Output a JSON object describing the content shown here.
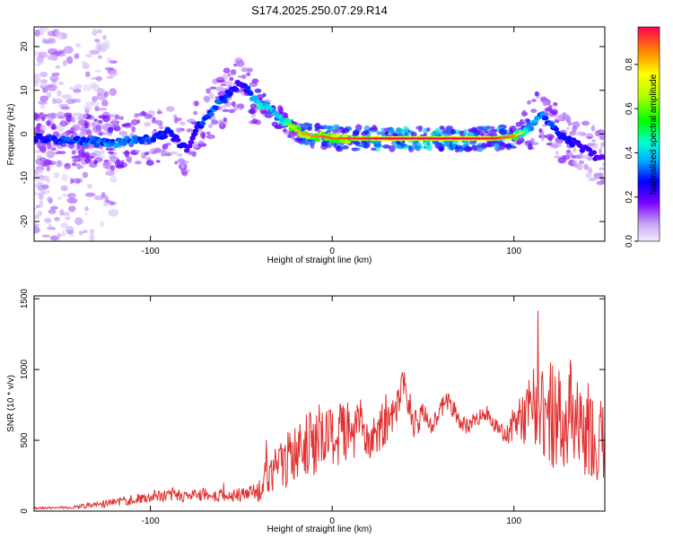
{
  "title": "S174.2025.250.07.29.R14",
  "colors": {
    "signal": "#e03030",
    "axis": "#000000",
    "background": "#ffffff"
  },
  "chart_data": [
    {
      "type": "heatmap",
      "title": "S174.2025.250.07.29.R14",
      "xlabel": "Height of straight line (km)",
      "ylabel": "Frequency (Hz)",
      "xlim": [
        -164,
        150
      ],
      "ylim": [
        -24.5,
        24.5
      ],
      "x_ticks": [
        -100,
        0,
        100
      ],
      "x_tick_labels": [
        "-100",
        "0",
        "100"
      ],
      "y_ticks": [
        -20,
        -10,
        0,
        10,
        20
      ],
      "y_tick_labels": [
        "-20",
        "-10",
        "0",
        "10",
        "20"
      ],
      "colorbar": {
        "label": "Normalized spectral amplitude",
        "range": [
          0,
          0.97
        ],
        "ticks": [
          0.0,
          0.2,
          0.4,
          0.6,
          0.8
        ],
        "tick_labels": [
          "0.0",
          "0.2",
          "0.4",
          "0.6",
          "0.8"
        ]
      },
      "ridge": {
        "x": [
          -164,
          -140,
          -120,
          -100,
          -90,
          -80,
          -75,
          -70,
          -65,
          -60,
          -55,
          -50,
          -45,
          -42,
          -40,
          -35,
          -30,
          -25,
          -20,
          -15,
          -10,
          -5,
          0,
          10,
          20,
          30,
          40,
          50,
          60,
          70,
          80,
          90,
          100,
          105,
          110,
          115,
          120,
          125,
          130,
          135,
          140,
          145,
          150
        ],
        "freq": [
          -1,
          -1.5,
          -2,
          -1,
          0.5,
          -3.5,
          1,
          3.5,
          6,
          8,
          10,
          12,
          9,
          7.5,
          7,
          6,
          4,
          2.5,
          1,
          0,
          -0.5,
          -0.5,
          -1,
          -1,
          -1,
          -1,
          -1,
          -1,
          -1,
          -1,
          -1,
          -1,
          -0.5,
          0.5,
          2,
          5,
          2,
          0,
          -1.5,
          -2.5,
          -3.5,
          -5,
          -5.5
        ],
        "amplitude": [
          0.35,
          0.4,
          0.45,
          0.4,
          0.38,
          0.3,
          0.35,
          0.4,
          0.42,
          0.4,
          0.35,
          0.3,
          0.45,
          0.5,
          0.55,
          0.5,
          0.5,
          0.6,
          0.75,
          0.8,
          0.8,
          0.85,
          0.85,
          0.88,
          0.9,
          0.95,
          0.97,
          0.97,
          0.95,
          0.95,
          0.92,
          0.9,
          0.8,
          0.6,
          0.5,
          0.45,
          0.4,
          0.35,
          0.35,
          0.3,
          0.3,
          0.28,
          0.25
        ]
      }
    },
    {
      "type": "line",
      "xlabel": "Height of straight line (km)",
      "ylabel": "SNR (10 * v/v)",
      "xlim": [
        -164,
        150
      ],
      "ylim": [
        0,
        1520
      ],
      "x_ticks": [
        -100,
        0,
        100
      ],
      "x_tick_labels": [
        "-100",
        "0",
        "100"
      ],
      "y_ticks": [
        0,
        500,
        1000,
        1500
      ],
      "y_tick_labels": [
        "0",
        "500",
        "1000",
        "1500"
      ],
      "series": [
        {
          "name": "SNR",
          "envelope": {
            "x": [
              -164,
              -150,
              -140,
              -130,
              -120,
              -110,
              -100,
              -95,
              -90,
              -80,
              -70,
              -60,
              -50,
              -45,
              -40,
              -35,
              -30,
              -25,
              -20,
              -15,
              -10,
              -5,
              0,
              5,
              10,
              15,
              20,
              25,
              30,
              35,
              38,
              40,
              45,
              50,
              55,
              60,
              62,
              65,
              70,
              75,
              80,
              85,
              90,
              95,
              100,
              105,
              110,
              115,
              120,
              125,
              130,
              135,
              140,
              145,
              150
            ],
            "mean": [
              20,
              25,
              30,
              45,
              60,
              80,
              100,
              110,
              110,
              110,
              120,
              110,
              110,
              130,
              140,
              280,
              320,
              350,
              420,
              460,
              480,
              500,
              520,
              560,
              580,
              600,
              520,
              560,
              600,
              700,
              850,
              900,
              600,
              680,
              600,
              720,
              820,
              750,
              620,
              600,
              660,
              700,
              600,
              520,
              620,
              650,
              700,
              800,
              700,
              650,
              700,
              600,
              550,
              500,
              450
            ],
            "noise": [
              8,
              10,
              12,
              25,
              30,
              35,
              45,
              50,
              45,
              45,
              50,
              45,
              45,
              60,
              80,
              150,
              180,
              200,
              220,
              230,
              230,
              220,
              220,
              230,
              220,
              200,
              180,
              150,
              130,
              140,
              150,
              120,
              100,
              90,
              70,
              80,
              90,
              80,
              60,
              60,
              60,
              50,
              50,
              60,
              120,
              200,
              300,
              400,
              400,
              380,
              400,
              380,
              350,
              320,
              300
            ]
          }
        }
      ]
    }
  ]
}
